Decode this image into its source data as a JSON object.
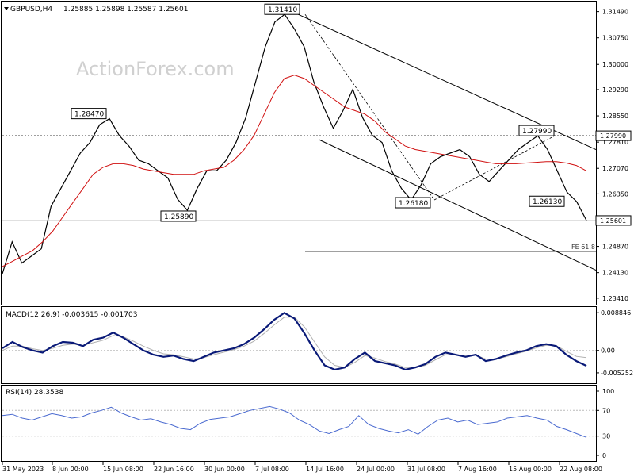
{
  "header": {
    "symbol": "GBPUSD,H4",
    "ohlc": "1.25885 1.25898 1.25587 1.25601",
    "watermark": "ActionForex.com"
  },
  "chart_data": {
    "type": "candlestick",
    "price_axis": {
      "ylim": [
        1.2325,
        1.3175
      ],
      "ticks": [
        "1.31490",
        "1.30750",
        "1.30000",
        "1.29290",
        "1.28550",
        "1.27810",
        "1.27070",
        "1.26350",
        "1.25610",
        "1.24870",
        "1.24130",
        "1.23410"
      ]
    },
    "x_labels": [
      "31 May 2023",
      "8 Jun 00:00",
      "15 Jun 08:00",
      "22 Jun 16:00",
      "30 Jun 00:00",
      "7 Jul 08:00",
      "14 Jul 16:00",
      "24 Jul 00:00",
      "31 Jul 08:00",
      "7 Aug 16:00",
      "15 Aug 00:00",
      "22 Aug 08:00"
    ],
    "price_series": {
      "name": "GBPUSD H4 close (approx.)",
      "x_range": [
        0,
        740
      ],
      "values": [
        1.241,
        1.25,
        1.244,
        1.246,
        1.248,
        1.26,
        1.265,
        1.27,
        1.275,
        1.278,
        1.283,
        1.2847,
        1.28,
        1.277,
        1.273,
        1.272,
        1.27,
        1.268,
        1.262,
        1.2589,
        1.265,
        1.27,
        1.27,
        1.273,
        1.278,
        1.285,
        1.295,
        1.305,
        1.312,
        1.3141,
        1.31,
        1.305,
        1.295,
        1.288,
        1.282,
        1.287,
        1.293,
        1.285,
        1.28,
        1.278,
        1.27,
        1.265,
        1.2618,
        1.266,
        1.272,
        1.274,
        1.275,
        1.276,
        1.274,
        1.269,
        1.267,
        1.27,
        1.273,
        1.276,
        1.278,
        1.2799,
        1.276,
        1.27,
        1.264,
        1.2613,
        1.256
      ]
    },
    "ma_series": {
      "name": "Moving average",
      "values": [
        1.243,
        1.2445,
        1.246,
        1.2475,
        1.25,
        1.253,
        1.257,
        1.261,
        1.265,
        1.269,
        1.271,
        1.272,
        1.272,
        1.2715,
        1.2705,
        1.27,
        1.2695,
        1.269,
        1.269,
        1.269,
        1.27,
        1.2705,
        1.271,
        1.273,
        1.276,
        1.28,
        1.286,
        1.292,
        1.296,
        1.297,
        1.296,
        1.294,
        1.292,
        1.29,
        1.288,
        1.287,
        1.286,
        1.284,
        1.281,
        1.279,
        1.277,
        1.276,
        1.2755,
        1.275,
        1.2745,
        1.274,
        1.2735,
        1.273,
        1.2725,
        1.272,
        1.272,
        1.272,
        1.2722,
        1.2724,
        1.2726,
        1.2726,
        1.2722,
        1.2715,
        1.27
      ]
    },
    "annotations": [
      {
        "text": "1.31410",
        "price": 1.3141
      },
      {
        "text": "1.28470",
        "price": 1.2847
      },
      {
        "text": "1.25890",
        "price": 1.2589
      },
      {
        "text": "1.26180",
        "price": 1.2618
      },
      {
        "text": "1.27990",
        "price": 1.2799
      },
      {
        "text": "1.26130",
        "price": 1.2613
      }
    ],
    "levels": [
      {
        "name": "dotted resistance",
        "price": 1.2799
      },
      {
        "name": "current price",
        "price": 1.256,
        "label": "1.25601"
      },
      {
        "name": "fe 61.8",
        "price": 1.2473,
        "label": "FE 61.8"
      }
    ],
    "channel": {
      "upper": [
        [
          0.5,
          1.315
        ],
        [
          1.0,
          1.276
        ]
      ],
      "lower": [
        [
          0.5,
          1.2788
        ],
        [
          1.0,
          1.242
        ]
      ]
    },
    "macd": {
      "label": "MACD(12,26,9) -0.003615 -0.001703",
      "ticks": [
        "0.008846",
        "0.00",
        "-0.005252"
      ],
      "ylim": [
        -0.0075,
        0.01
      ],
      "macd_values": [
        0.0005,
        0.002,
        0.0008,
        0.0,
        -0.0005,
        0.001,
        0.002,
        0.0018,
        0.001,
        0.0025,
        0.003,
        0.0042,
        0.003,
        0.0015,
        0.0,
        -0.001,
        -0.0015,
        -0.0012,
        -0.002,
        -0.0025,
        -0.0015,
        -0.0005,
        0.0,
        0.0005,
        0.0015,
        0.003,
        0.005,
        0.0072,
        0.0088,
        0.0075,
        0.004,
        0.0,
        -0.0035,
        -0.0045,
        -0.004,
        -0.002,
        -0.0005,
        -0.0025,
        -0.003,
        -0.0035,
        -0.0045,
        -0.004,
        -0.0032,
        -0.0015,
        -0.0005,
        -0.001,
        -0.0015,
        -0.001,
        -0.0025,
        -0.002,
        -0.0012,
        -0.0005,
        0.0,
        0.001,
        0.0015,
        0.001,
        -0.001,
        -0.0025,
        -0.0036
      ],
      "signal_values": [
        0.0,
        0.001,
        0.001,
        0.0004,
        0.0,
        0.0005,
        0.0012,
        0.0015,
        0.0012,
        0.0018,
        0.0024,
        0.0035,
        0.0032,
        0.0022,
        0.001,
        0.0,
        -0.0008,
        -0.001,
        -0.0015,
        -0.002,
        -0.0017,
        -0.001,
        -0.0004,
        0.0002,
        0.001,
        0.0022,
        0.004,
        0.006,
        0.0078,
        0.0078,
        0.0055,
        0.002,
        -0.0015,
        -0.0035,
        -0.004,
        -0.0028,
        -0.0012,
        -0.0018,
        -0.0026,
        -0.0032,
        -0.004,
        -0.004,
        -0.0035,
        -0.0022,
        -0.001,
        -0.001,
        -0.0013,
        -0.0011,
        -0.002,
        -0.002,
        -0.0015,
        -0.0008,
        -0.0002,
        0.0006,
        0.0012,
        0.0011,
        -0.0002,
        -0.0014,
        -0.0017
      ]
    },
    "rsi": {
      "label": "RSI(14) 28.3538",
      "ticks": [
        "100",
        "70",
        "30",
        "0"
      ],
      "ylim": [
        0,
        100
      ],
      "values": [
        62,
        64,
        58,
        55,
        60,
        65,
        62,
        58,
        60,
        66,
        70,
        75,
        66,
        60,
        55,
        57,
        52,
        48,
        42,
        40,
        50,
        56,
        58,
        60,
        65,
        70,
        73,
        76,
        72,
        66,
        55,
        48,
        38,
        34,
        40,
        45,
        62,
        48,
        42,
        38,
        35,
        40,
        33,
        45,
        55,
        58,
        52,
        55,
        48,
        50,
        52,
        58,
        60,
        62,
        58,
        55,
        45,
        40,
        34,
        28
      ]
    }
  }
}
